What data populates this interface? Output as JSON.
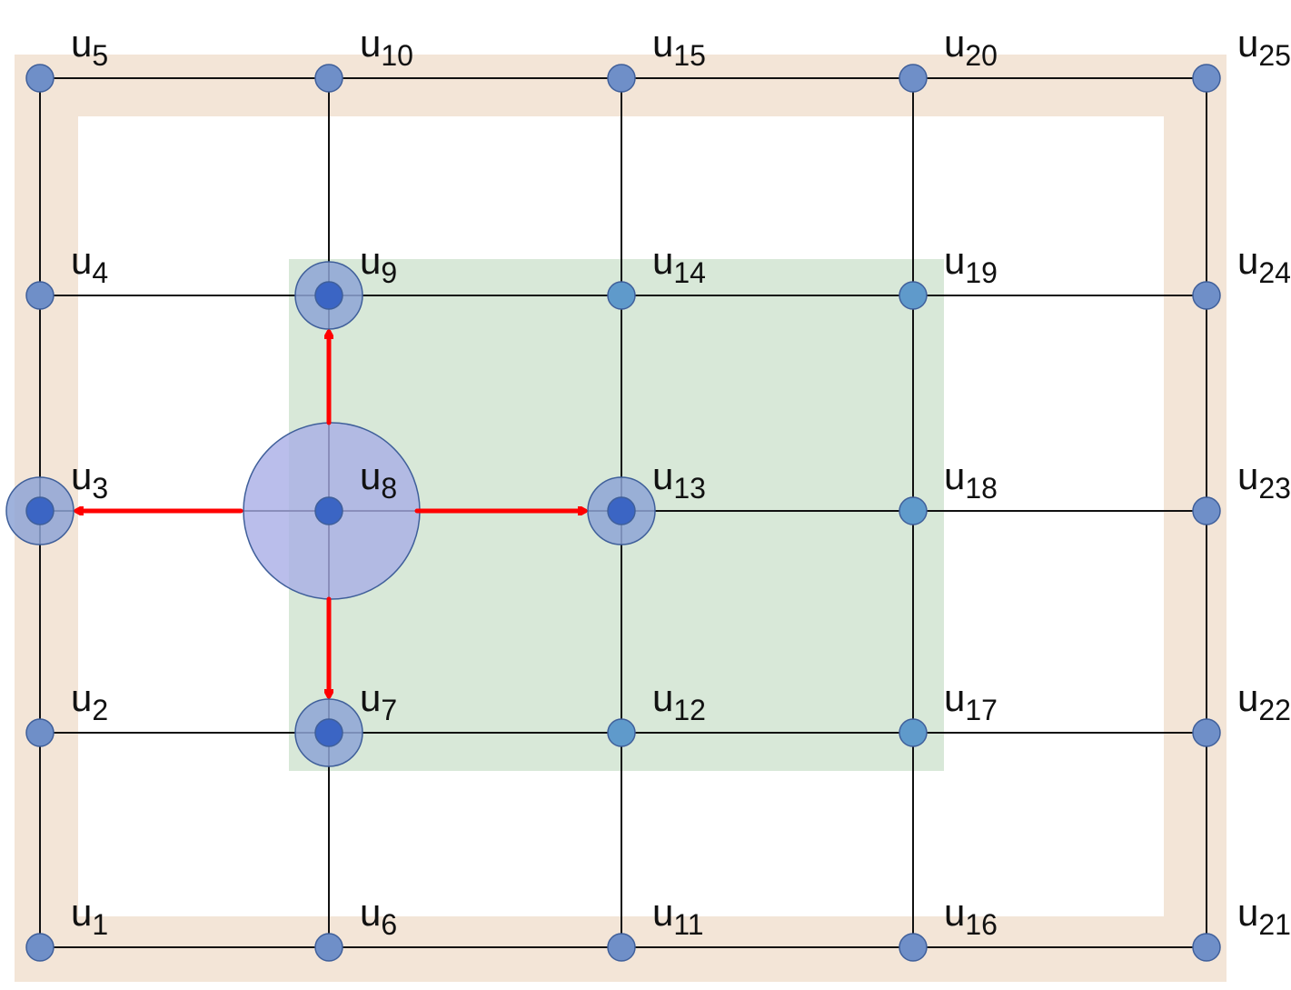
{
  "colors": {
    "border_band": "#f3e5d7",
    "highlight_region": "#d8e8d8",
    "grid_line": "#111111",
    "node_fill": "#6f8fc8",
    "node_stroke": "#3f5f9a",
    "node_in_region": "#5f9acb",
    "selected_node": "#3b65c4",
    "selected_halo": "#8ea5d6",
    "center_halo": "#a9aee6",
    "arrow": "#ff0000"
  },
  "nodes": [
    {
      "id": "u1",
      "base": "u",
      "sub": "1",
      "col": 1,
      "row": 1
    },
    {
      "id": "u2",
      "base": "u",
      "sub": "2",
      "col": 1,
      "row": 2
    },
    {
      "id": "u3",
      "base": "u",
      "sub": "3",
      "col": 1,
      "row": 3
    },
    {
      "id": "u4",
      "base": "u",
      "sub": "4",
      "col": 1,
      "row": 4
    },
    {
      "id": "u5",
      "base": "u",
      "sub": "5",
      "col": 1,
      "row": 5
    },
    {
      "id": "u6",
      "base": "u",
      "sub": "6",
      "col": 2,
      "row": 1
    },
    {
      "id": "u7",
      "base": "u",
      "sub": "7",
      "col": 2,
      "row": 2
    },
    {
      "id": "u8",
      "base": "u",
      "sub": "8",
      "col": 2,
      "row": 3
    },
    {
      "id": "u9",
      "base": "u",
      "sub": "9",
      "col": 2,
      "row": 4
    },
    {
      "id": "u10",
      "base": "u",
      "sub": "10",
      "col": 2,
      "row": 5
    },
    {
      "id": "u11",
      "base": "u",
      "sub": "11",
      "col": 3,
      "row": 1
    },
    {
      "id": "u12",
      "base": "u",
      "sub": "12",
      "col": 3,
      "row": 2
    },
    {
      "id": "u13",
      "base": "u",
      "sub": "13",
      "col": 3,
      "row": 3
    },
    {
      "id": "u14",
      "base": "u",
      "sub": "14",
      "col": 3,
      "row": 4
    },
    {
      "id": "u15",
      "base": "u",
      "sub": "15",
      "col": 3,
      "row": 5
    },
    {
      "id": "u16",
      "base": "u",
      "sub": "16",
      "col": 4,
      "row": 1
    },
    {
      "id": "u17",
      "base": "u",
      "sub": "17",
      "col": 4,
      "row": 2
    },
    {
      "id": "u18",
      "base": "u",
      "sub": "18",
      "col": 4,
      "row": 3
    },
    {
      "id": "u19",
      "base": "u",
      "sub": "19",
      "col": 4,
      "row": 4
    },
    {
      "id": "u20",
      "base": "u",
      "sub": "20",
      "col": 4,
      "row": 5
    },
    {
      "id": "u21",
      "base": "u",
      "sub": "21",
      "col": 5,
      "row": 1
    },
    {
      "id": "u22",
      "base": "u",
      "sub": "22",
      "col": 5,
      "row": 2
    },
    {
      "id": "u23",
      "base": "u",
      "sub": "23",
      "col": 5,
      "row": 3
    },
    {
      "id": "u24",
      "base": "u",
      "sub": "24",
      "col": 5,
      "row": 4
    },
    {
      "id": "u25",
      "base": "u",
      "sub": "25",
      "col": 5,
      "row": 5
    }
  ],
  "highlighted_region_nodes": [
    "u8",
    "u9",
    "u7",
    "u13",
    "u14",
    "u12",
    "u19",
    "u18",
    "u17"
  ],
  "center_node": "u8",
  "neighbor_nodes": [
    "u3",
    "u7",
    "u9",
    "u13"
  ],
  "arrows": [
    {
      "from": "u8",
      "to": "u9"
    },
    {
      "from": "u8",
      "to": "u7"
    },
    {
      "from": "u8",
      "to": "u3"
    },
    {
      "from": "u8",
      "to": "u13"
    }
  ]
}
